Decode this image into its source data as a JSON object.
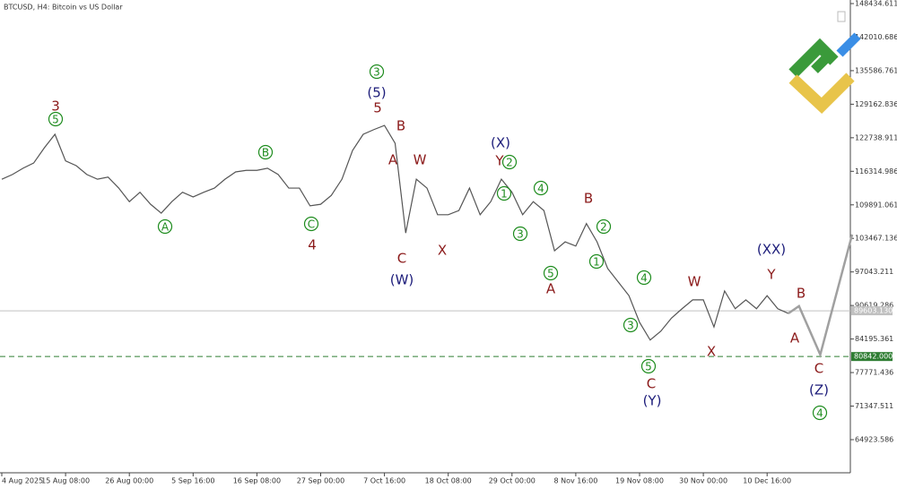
{
  "chart_data": {
    "type": "line",
    "title": "BTCUSD, H4:  Bitcoin vs US Dollar",
    "categories": [
      "4 Aug 2025",
      null,
      null,
      null,
      null,
      null,
      "15 Aug 08:00",
      null,
      null,
      null,
      null,
      null,
      "26 Aug 00:00",
      null,
      null,
      null,
      null,
      null,
      "5 Sep 16:00",
      null,
      null,
      null,
      null,
      null,
      "16 Sep 08:00",
      null,
      null,
      null,
      null,
      null,
      "27 Sep 00:00",
      null,
      null,
      null,
      null,
      null,
      "7 Oct 16:00",
      null,
      null,
      null,
      null,
      null,
      "18 Oct 08:00",
      null,
      null,
      null,
      null,
      null,
      "29 Oct 00:00",
      null,
      null,
      null,
      null,
      null,
      "8 Nov 16:00",
      null,
      null,
      null,
      null,
      null,
      "19 Nov 08:00",
      null,
      null,
      null,
      null,
      null,
      "30 Nov 00:00",
      null,
      null,
      null,
      null,
      null,
      "10 Dec 16:00",
      null,
      null
    ],
    "series": [
      {
        "color": "#555555",
        "values": [
          114800,
          115700,
          116900,
          117900,
          120800,
          123400,
          118300,
          117400,
          115700,
          114800,
          115200,
          113100,
          110500,
          112300,
          110000,
          108300,
          110500,
          112300,
          111400,
          112300,
          113100,
          114800,
          116200,
          116500,
          116500,
          116900,
          115700,
          113100,
          113100,
          109700,
          110000,
          111700,
          114800,
          120300,
          123400,
          124300,
          125100,
          121700,
          104500,
          114800,
          113100,
          108000,
          108000,
          108800,
          113100,
          108000,
          110500,
          114800,
          112300,
          108000,
          110500,
          108800,
          101100,
          102800,
          102000,
          106300,
          102800,
          97700,
          95100,
          92500,
          87400,
          84000,
          85700,
          88200,
          90000,
          91700,
          91700,
          86500,
          93400,
          90000,
          91700,
          90000,
          92500,
          90000,
          89100
        ]
      }
    ],
    "projection": {
      "color": "#a0a0a0",
      "x": [
        74,
        75,
        77,
        80
      ],
      "values": [
        89100,
        90500,
        81200,
        104200
      ]
    },
    "hlines": [
      {
        "value": 89603.13,
        "label": "89603.130",
        "color": "#c0c0c0",
        "style": "solid"
      },
      {
        "value": 80842,
        "label": "80842.000",
        "color": "#2e7d32",
        "style": "dashed"
      }
    ],
    "ylim": [
      58579,
      149121
    ],
    "yticks": [
      148434.611,
      142010.686,
      135586.761,
      129162.836,
      122738.911,
      116314.986,
      109891.061,
      103467.136,
      97043.211,
      90619.286,
      84195.361,
      77771.436,
      71347.511,
      64923.586
    ],
    "annotations": [
      {
        "text": "3",
        "color": "#8b1a1a",
        "circled": false
      },
      {
        "text": "5",
        "color": "#1e8c1e",
        "circled": true
      },
      {
        "text": "A",
        "color": "#1e8c1e",
        "circled": true
      },
      {
        "text": "B",
        "color": "#1e8c1e",
        "circled": true
      },
      {
        "text": "C",
        "color": "#1e8c1e",
        "circled": true
      },
      {
        "text": "4",
        "color": "#8b1a1a",
        "circled": false
      },
      {
        "text": "3",
        "color": "#1e8c1e",
        "circled": true
      },
      {
        "text": "(5)",
        "color": "#1c1c7a",
        "circled": false
      },
      {
        "text": "5",
        "color": "#8b1a1a",
        "circled": false
      },
      {
        "text": "B",
        "color": "#8b1a1a",
        "circled": false
      },
      {
        "text": "A",
        "color": "#8b1a1a",
        "circled": false
      },
      {
        "text": "W",
        "color": "#8b1a1a",
        "circled": false
      },
      {
        "text": "C",
        "color": "#8b1a1a",
        "circled": false
      },
      {
        "text": "(W)",
        "color": "#1c1c7a",
        "circled": false
      },
      {
        "text": "X",
        "color": "#8b1a1a",
        "circled": false
      },
      {
        "text": "(X)",
        "color": "#1c1c7a",
        "circled": false
      },
      {
        "text": "Y",
        "color": "#8b1a1a",
        "circled": false
      },
      {
        "text": "2",
        "color": "#1e8c1e",
        "circled": true
      },
      {
        "text": "1",
        "color": "#1e8c1e",
        "circled": true
      },
      {
        "text": "4",
        "color": "#1e8c1e",
        "circled": true
      },
      {
        "text": "3",
        "color": "#1e8c1e",
        "circled": true
      },
      {
        "text": "B",
        "color": "#8b1a1a",
        "circled": false
      },
      {
        "text": "2",
        "color": "#1e8c1e",
        "circled": true
      },
      {
        "text": "1",
        "color": "#1e8c1e",
        "circled": true
      },
      {
        "text": "5",
        "color": "#1e8c1e",
        "circled": true
      },
      {
        "text": "A",
        "color": "#8b1a1a",
        "circled": false
      },
      {
        "text": "4",
        "color": "#1e8c1e",
        "circled": true
      },
      {
        "text": "W",
        "color": "#8b1a1a",
        "circled": false
      },
      {
        "text": "3",
        "color": "#1e8c1e",
        "circled": true
      },
      {
        "text": "X",
        "color": "#8b1a1a",
        "circled": false
      },
      {
        "text": "5",
        "color": "#1e8c1e",
        "circled": true
      },
      {
        "text": "C",
        "color": "#8b1a1a",
        "circled": false
      },
      {
        "text": "(Y)",
        "color": "#1c1c7a",
        "circled": false
      },
      {
        "text": "(XX)",
        "color": "#1c1c7a",
        "circled": false
      },
      {
        "text": "Y",
        "color": "#8b1a1a",
        "circled": false
      },
      {
        "text": "B",
        "color": "#8b1a1a",
        "circled": false
      },
      {
        "text": "A",
        "color": "#8b1a1a",
        "circled": false
      },
      {
        "text": "C",
        "color": "#8b1a1a",
        "circled": false
      },
      {
        "text": "(Z)",
        "color": "#1c1c7a",
        "circled": false
      },
      {
        "text": "4",
        "color": "#1e8c1e",
        "circled": true
      }
    ]
  }
}
